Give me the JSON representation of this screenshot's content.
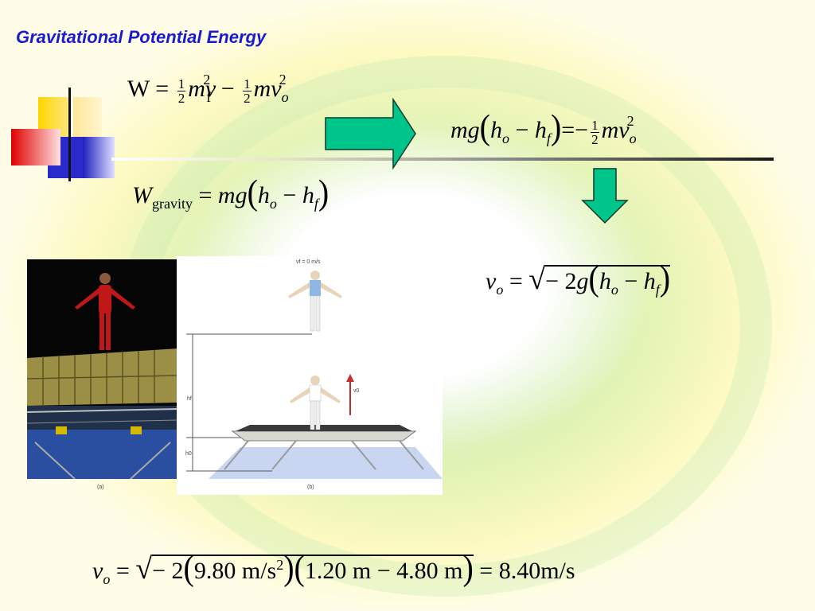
{
  "title": "Gravitational Potential Energy",
  "eq_work": {
    "lhs": "W",
    "eq": "=",
    "half": "1",
    "two": "2",
    "m1": "mv",
    "sub_f": "f",
    "sq": "2",
    "minus": "−",
    "m2": "mv",
    "sub_o": "o"
  },
  "eq_gravity": {
    "W": "W",
    "sub": "gravity",
    "eq": "=",
    "mg": "mg",
    "h": "h",
    "o": "o",
    "minus": "−",
    "hf": "h",
    "f": "f"
  },
  "eq_energy": {
    "mg": "mg",
    "h": "h",
    "o": "o",
    "minus": "−",
    "hf": "h",
    "f": "f",
    "eq": "=−",
    "one": "1",
    "two": "2",
    "mv": "mv",
    "sq": "2",
    "sub_o": "o"
  },
  "eq_vo": {
    "v": "v",
    "o": "o",
    "eq": "=",
    "inner": "− 2",
    "g": "g",
    "h": "h",
    "ho": "o",
    "minus": "−",
    "hf": "h",
    "f": "f"
  },
  "eq_final": {
    "v": "v",
    "o": "o",
    "eq": "=",
    "neg2": "− 2",
    "g_val": "9.80",
    "g_unit": "m/s",
    "sq": "2",
    "h1": "1.20",
    "h1u": "m",
    "minus": "−",
    "h2": "4.80",
    "h2u": "m",
    "eq2": "=",
    "result": "8.40",
    "result_unit": "m/s"
  },
  "figure": {
    "vf_label": "vf = 0 m/s",
    "v0_label": "v0",
    "hf_label": "hf",
    "h0_label": "h0",
    "cap_a": "(a)",
    "cap_b": "(b)"
  },
  "colors": {
    "title": "#1a1ad0",
    "arrow": "#00c58a",
    "arrow_stroke": "#0a3b2a"
  }
}
